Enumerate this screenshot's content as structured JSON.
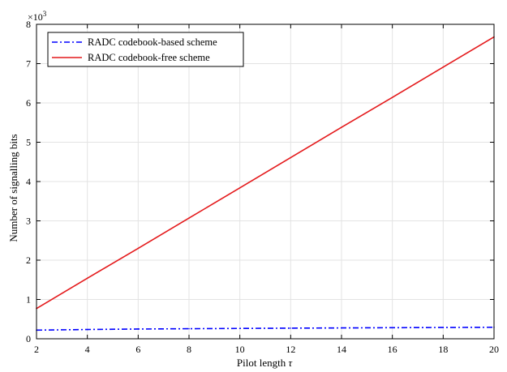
{
  "chart_data": {
    "type": "line",
    "xlabel": "Pilot length",
    "xlabel_symbol": "τ",
    "ylabel": "Number of signalling bits",
    "y_multiplier": "×10",
    "y_multiplier_exp": "3",
    "xlim": [
      2,
      20
    ],
    "ylim": [
      0,
      8
    ],
    "xticks": [
      "2",
      "4",
      "6",
      "8",
      "10",
      "12",
      "14",
      "16",
      "18",
      "20"
    ],
    "yticks": [
      "0",
      "1",
      "2",
      "3",
      "4",
      "5",
      "6",
      "7",
      "8"
    ],
    "grid": true,
    "legend_position": "top-left",
    "x": [
      2,
      4,
      6,
      8,
      10,
      12,
      14,
      16,
      18,
      20
    ],
    "series": [
      {
        "name": "RADC codebook-based scheme",
        "color": "#0000ff",
        "line_style": "dash-dot",
        "values": [
          0.22,
          0.236,
          0.248,
          0.256,
          0.263,
          0.27,
          0.276,
          0.282,
          0.287,
          0.292
        ]
      },
      {
        "name": "RADC codebook-free scheme",
        "color": "#e41a1c",
        "line_style": "solid",
        "values": [
          0.77,
          1.54,
          2.3,
          3.07,
          3.84,
          4.61,
          5.38,
          6.14,
          6.91,
          7.68
        ]
      }
    ]
  }
}
